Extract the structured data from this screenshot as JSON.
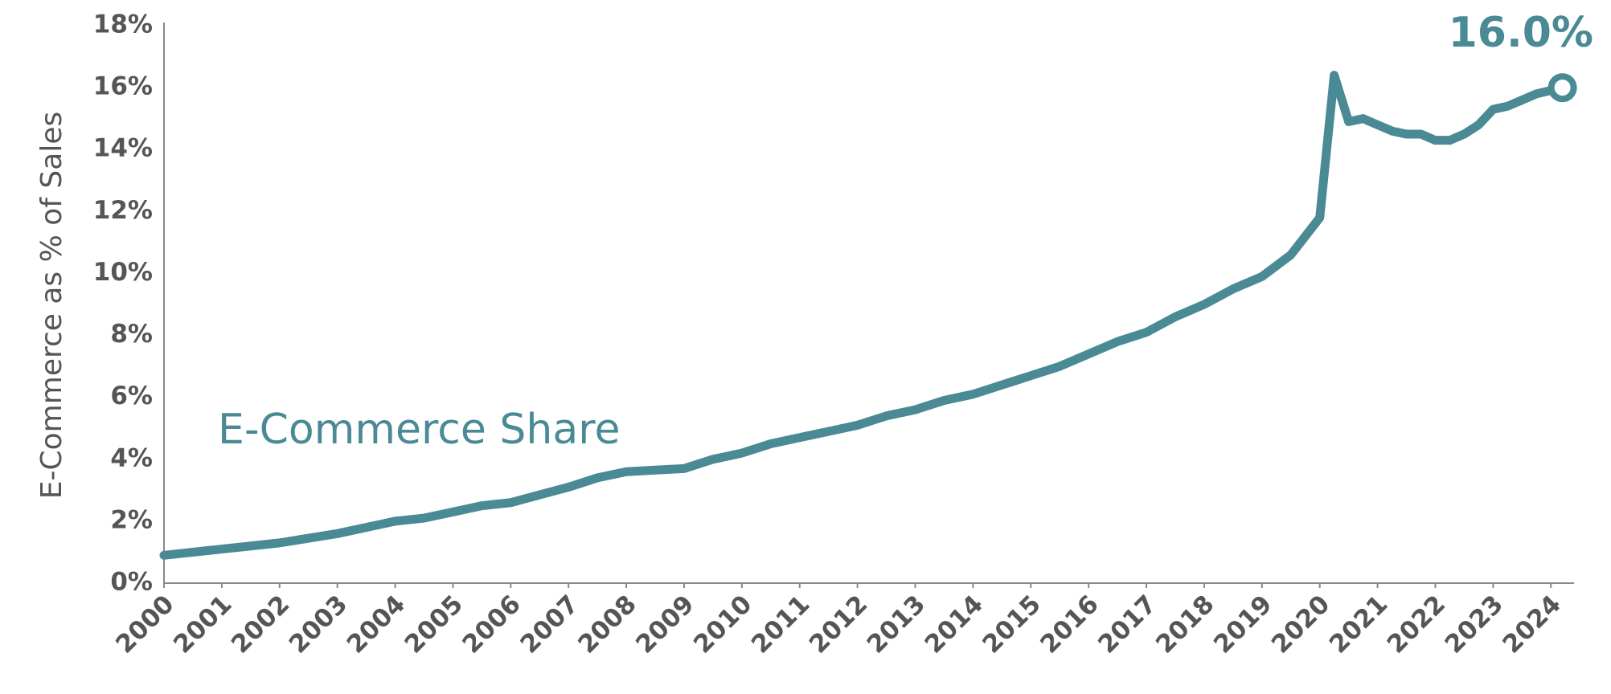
{
  "chart_data": {
    "type": "line",
    "y_label": "E-Commerce as % of Sales",
    "x": [
      2000,
      2000.5,
      2001,
      2001.5,
      2002,
      2002.5,
      2003,
      2003.5,
      2004,
      2004.5,
      2005,
      2005.5,
      2006,
      2006.5,
      2007,
      2007.5,
      2008,
      2008.5,
      2009,
      2009.5,
      2010,
      2010.5,
      2011,
      2011.5,
      2012,
      2012.5,
      2013,
      2013.5,
      2014,
      2014.5,
      2015,
      2015.5,
      2016,
      2016.5,
      2017,
      2017.5,
      2018,
      2018.5,
      2019,
      2019.5,
      2019.75,
      2020,
      2020.25,
      2020.5,
      2020.75,
      2021,
      2021.25,
      2021.5,
      2021.75,
      2022,
      2022.25,
      2022.5,
      2022.75,
      2023,
      2023.25,
      2023.5,
      2023.75,
      2024.2
    ],
    "series": [
      {
        "name": "E-Commerce Share",
        "color": "#4a8a94",
        "values": [
          0.9,
          1.0,
          1.1,
          1.2,
          1.3,
          1.45,
          1.6,
          1.8,
          2.0,
          2.1,
          2.3,
          2.5,
          2.6,
          2.85,
          3.1,
          3.4,
          3.6,
          3.65,
          3.7,
          4.0,
          4.2,
          4.5,
          4.7,
          4.9,
          5.1,
          5.4,
          5.6,
          5.9,
          6.1,
          6.4,
          6.7,
          7.0,
          7.4,
          7.8,
          8.1,
          8.6,
          9.0,
          9.5,
          9.9,
          10.6,
          11.2,
          11.8,
          16.4,
          14.9,
          15.0,
          14.8,
          14.6,
          14.5,
          14.5,
          14.3,
          14.3,
          14.5,
          14.8,
          15.3,
          15.4,
          15.6,
          15.8,
          16.0
        ],
        "end_label": "16.0%"
      }
    ],
    "xlim": [
      2000,
      2024.4
    ],
    "xticks": [
      2000,
      2001,
      2002,
      2003,
      2004,
      2005,
      2006,
      2007,
      2008,
      2009,
      2010,
      2011,
      2012,
      2013,
      2014,
      2015,
      2016,
      2017,
      2018,
      2019,
      2020,
      2021,
      2022,
      2023,
      2024
    ],
    "ylim": [
      0,
      18
    ],
    "yticks": [
      {
        "value": 0,
        "label": "0%"
      },
      {
        "value": 2,
        "label": "2%"
      },
      {
        "value": 4,
        "label": "4%"
      },
      {
        "value": 6,
        "label": "6%"
      },
      {
        "value": 8,
        "label": "8%"
      },
      {
        "value": 10,
        "label": "10%"
      },
      {
        "value": 12,
        "label": "12%"
      },
      {
        "value": 14,
        "label": "14%"
      },
      {
        "value": 16,
        "label": "16%"
      },
      {
        "value": 18,
        "label": "18%"
      }
    ],
    "grid": false
  }
}
